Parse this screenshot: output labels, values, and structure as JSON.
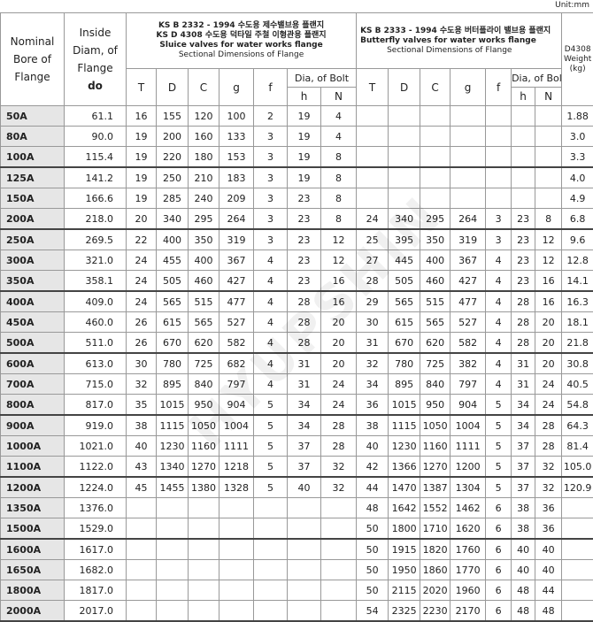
{
  "unit": "Unit:mm",
  "watermark": "HYUPSHIN",
  "header": {
    "bore": "Nominal Bore of Flange",
    "inside": "Inside Diam, of Flange",
    "inside_sub": "do",
    "sluice": {
      "line1": "KS B 2332 - 1994 수도용 제수밸브용 플랜지",
      "line2": "KS D 4308 수도용 덕타일 주철 이형관용 플랜지",
      "line3": "Sluice valves for water works flange",
      "line4": "Sectional Dimensions of Flange"
    },
    "butterfly": {
      "line1": "KS B 2333 - 1994 수도용 버터플라이 밸브용 플랜지",
      "line2": "Butterfly valves for water works flange",
      "line3": "Sectional Dimensions of Flange"
    },
    "weight": "D4308 Weight",
    "weight_unit": "(kg)",
    "cols": [
      "T",
      "D",
      "C",
      "g",
      "f"
    ],
    "bolt": "Dia, of Bolt",
    "bolt_cols": [
      "h",
      "N"
    ]
  },
  "groups": [
    [
      {
        "bore": "50A",
        "inside": "61.1",
        "sluice": [
          "16",
          "155",
          "120",
          "100",
          "2",
          "19",
          "4"
        ],
        "butterfly": null,
        "weight": "1.88"
      },
      {
        "bore": "80A",
        "inside": "90.0",
        "sluice": [
          "19",
          "200",
          "160",
          "133",
          "3",
          "19",
          "4"
        ],
        "butterfly": null,
        "weight": "3.0"
      },
      {
        "bore": "100A",
        "inside": "115.4",
        "sluice": [
          "19",
          "220",
          "180",
          "153",
          "3",
          "19",
          "8"
        ],
        "butterfly": null,
        "weight": "3.3"
      }
    ],
    [
      {
        "bore": "125A",
        "inside": "141.2",
        "sluice": [
          "19",
          "250",
          "210",
          "183",
          "3",
          "19",
          "8"
        ],
        "butterfly": null,
        "weight": "4.0"
      },
      {
        "bore": "150A",
        "inside": "166.6",
        "sluice": [
          "19",
          "285",
          "240",
          "209",
          "3",
          "23",
          "8"
        ],
        "butterfly": null,
        "weight": "4.9"
      },
      {
        "bore": "200A",
        "inside": "218.0",
        "sluice": [
          "20",
          "340",
          "295",
          "264",
          "3",
          "23",
          "8"
        ],
        "butterfly": [
          "24",
          "340",
          "295",
          "264",
          "3",
          "23",
          "8"
        ],
        "weight": "6.8"
      }
    ],
    [
      {
        "bore": "250A",
        "inside": "269.5",
        "sluice": [
          "22",
          "400",
          "350",
          "319",
          "3",
          "23",
          "12"
        ],
        "butterfly": [
          "25",
          "395",
          "350",
          "319",
          "3",
          "23",
          "12"
        ],
        "weight": "9.6"
      },
      {
        "bore": "300A",
        "inside": "321.0",
        "sluice": [
          "24",
          "455",
          "400",
          "367",
          "4",
          "23",
          "12"
        ],
        "butterfly": [
          "27",
          "445",
          "400",
          "367",
          "4",
          "23",
          "12"
        ],
        "weight": "12.8"
      },
      {
        "bore": "350A",
        "inside": "358.1",
        "sluice": [
          "24",
          "505",
          "460",
          "427",
          "4",
          "23",
          "16"
        ],
        "butterfly": [
          "28",
          "505",
          "460",
          "427",
          "4",
          "23",
          "16"
        ],
        "weight": "14.1"
      }
    ],
    [
      {
        "bore": "400A",
        "inside": "409.0",
        "sluice": [
          "24",
          "565",
          "515",
          "477",
          "4",
          "28",
          "16"
        ],
        "butterfly": [
          "29",
          "565",
          "515",
          "477",
          "4",
          "28",
          "16"
        ],
        "weight": "16.3"
      },
      {
        "bore": "450A",
        "inside": "460.0",
        "sluice": [
          "26",
          "615",
          "565",
          "527",
          "4",
          "28",
          "20"
        ],
        "butterfly": [
          "30",
          "615",
          "565",
          "527",
          "4",
          "28",
          "20"
        ],
        "weight": "18.1"
      },
      {
        "bore": "500A",
        "inside": "511.0",
        "sluice": [
          "26",
          "670",
          "620",
          "582",
          "4",
          "28",
          "20"
        ],
        "butterfly": [
          "31",
          "670",
          "620",
          "582",
          "4",
          "28",
          "20"
        ],
        "weight": "21.8"
      }
    ],
    [
      {
        "bore": "600A",
        "inside": "613.0",
        "sluice": [
          "30",
          "780",
          "725",
          "682",
          "4",
          "31",
          "20"
        ],
        "butterfly": [
          "32",
          "780",
          "725",
          "382",
          "4",
          "31",
          "20"
        ],
        "weight": "30.8"
      },
      {
        "bore": "700A",
        "inside": "715.0",
        "sluice": [
          "32",
          "895",
          "840",
          "797",
          "4",
          "31",
          "24"
        ],
        "butterfly": [
          "34",
          "895",
          "840",
          "797",
          "4",
          "31",
          "24"
        ],
        "weight": "40.5"
      },
      {
        "bore": "800A",
        "inside": "817.0",
        "sluice": [
          "35",
          "1015",
          "950",
          "904",
          "5",
          "34",
          "24"
        ],
        "butterfly": [
          "36",
          "1015",
          "950",
          "904",
          "5",
          "34",
          "24"
        ],
        "weight": "54.8"
      }
    ],
    [
      {
        "bore": "900A",
        "inside": "919.0",
        "sluice": [
          "38",
          "1115",
          "1050",
          "1004",
          "5",
          "34",
          "28"
        ],
        "butterfly": [
          "38",
          "1115",
          "1050",
          "1004",
          "5",
          "34",
          "28"
        ],
        "weight": "64.3"
      },
      {
        "bore": "1000A",
        "inside": "1021.0",
        "sluice": [
          "40",
          "1230",
          "1160",
          "1111",
          "5",
          "37",
          "28"
        ],
        "butterfly": [
          "40",
          "1230",
          "1160",
          "1111",
          "5",
          "37",
          "28"
        ],
        "weight": "81.4"
      },
      {
        "bore": "1100A",
        "inside": "1122.0",
        "sluice": [
          "43",
          "1340",
          "1270",
          "1218",
          "5",
          "37",
          "32"
        ],
        "butterfly": [
          "42",
          "1366",
          "1270",
          "1200",
          "5",
          "37",
          "32"
        ],
        "weight": "105.0"
      }
    ],
    [
      {
        "bore": "1200A",
        "inside": "1224.0",
        "sluice": [
          "45",
          "1455",
          "1380",
          "1328",
          "5",
          "40",
          "32"
        ],
        "butterfly": [
          "44",
          "1470",
          "1387",
          "1304",
          "5",
          "37",
          "32"
        ],
        "weight": "120.9"
      },
      {
        "bore": "1350A",
        "inside": "1376.0",
        "sluice": null,
        "butterfly": [
          "48",
          "1642",
          "1552",
          "1462",
          "6",
          "38",
          "36"
        ],
        "weight": null
      },
      {
        "bore": "1500A",
        "inside": "1529.0",
        "sluice": null,
        "butterfly": [
          "50",
          "1800",
          "1710",
          "1620",
          "6",
          "38",
          "36"
        ],
        "weight": null
      }
    ],
    [
      {
        "bore": "1600A",
        "inside": "1617.0",
        "sluice": null,
        "butterfly": [
          "50",
          "1915",
          "1820",
          "1760",
          "6",
          "40",
          "40"
        ],
        "weight": null
      },
      {
        "bore": "1650A",
        "inside": "1682.0",
        "sluice": null,
        "butterfly": [
          "50",
          "1950",
          "1860",
          "1770",
          "6",
          "40",
          "40"
        ],
        "weight": null
      },
      {
        "bore": "1800A",
        "inside": "1817.0",
        "sluice": null,
        "butterfly": [
          "50",
          "2115",
          "2020",
          "1960",
          "6",
          "48",
          "44"
        ],
        "weight": null
      },
      {
        "bore": "2000A",
        "inside": "2017.0",
        "sluice": null,
        "butterfly": [
          "54",
          "2325",
          "2230",
          "2170",
          "6",
          "48",
          "48"
        ],
        "weight": null
      }
    ]
  ]
}
